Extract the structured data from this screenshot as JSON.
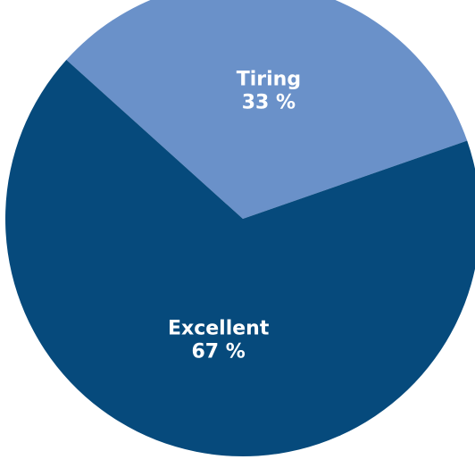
{
  "chart_data": {
    "type": "pie",
    "title": "",
    "slices": [
      {
        "label": "Tiring",
        "value": 33,
        "value_label": "33 %",
        "color": "#6a91c9"
      },
      {
        "label": "Excellent",
        "value": 67,
        "value_label": "67 %",
        "color": "#064a7c"
      }
    ]
  }
}
